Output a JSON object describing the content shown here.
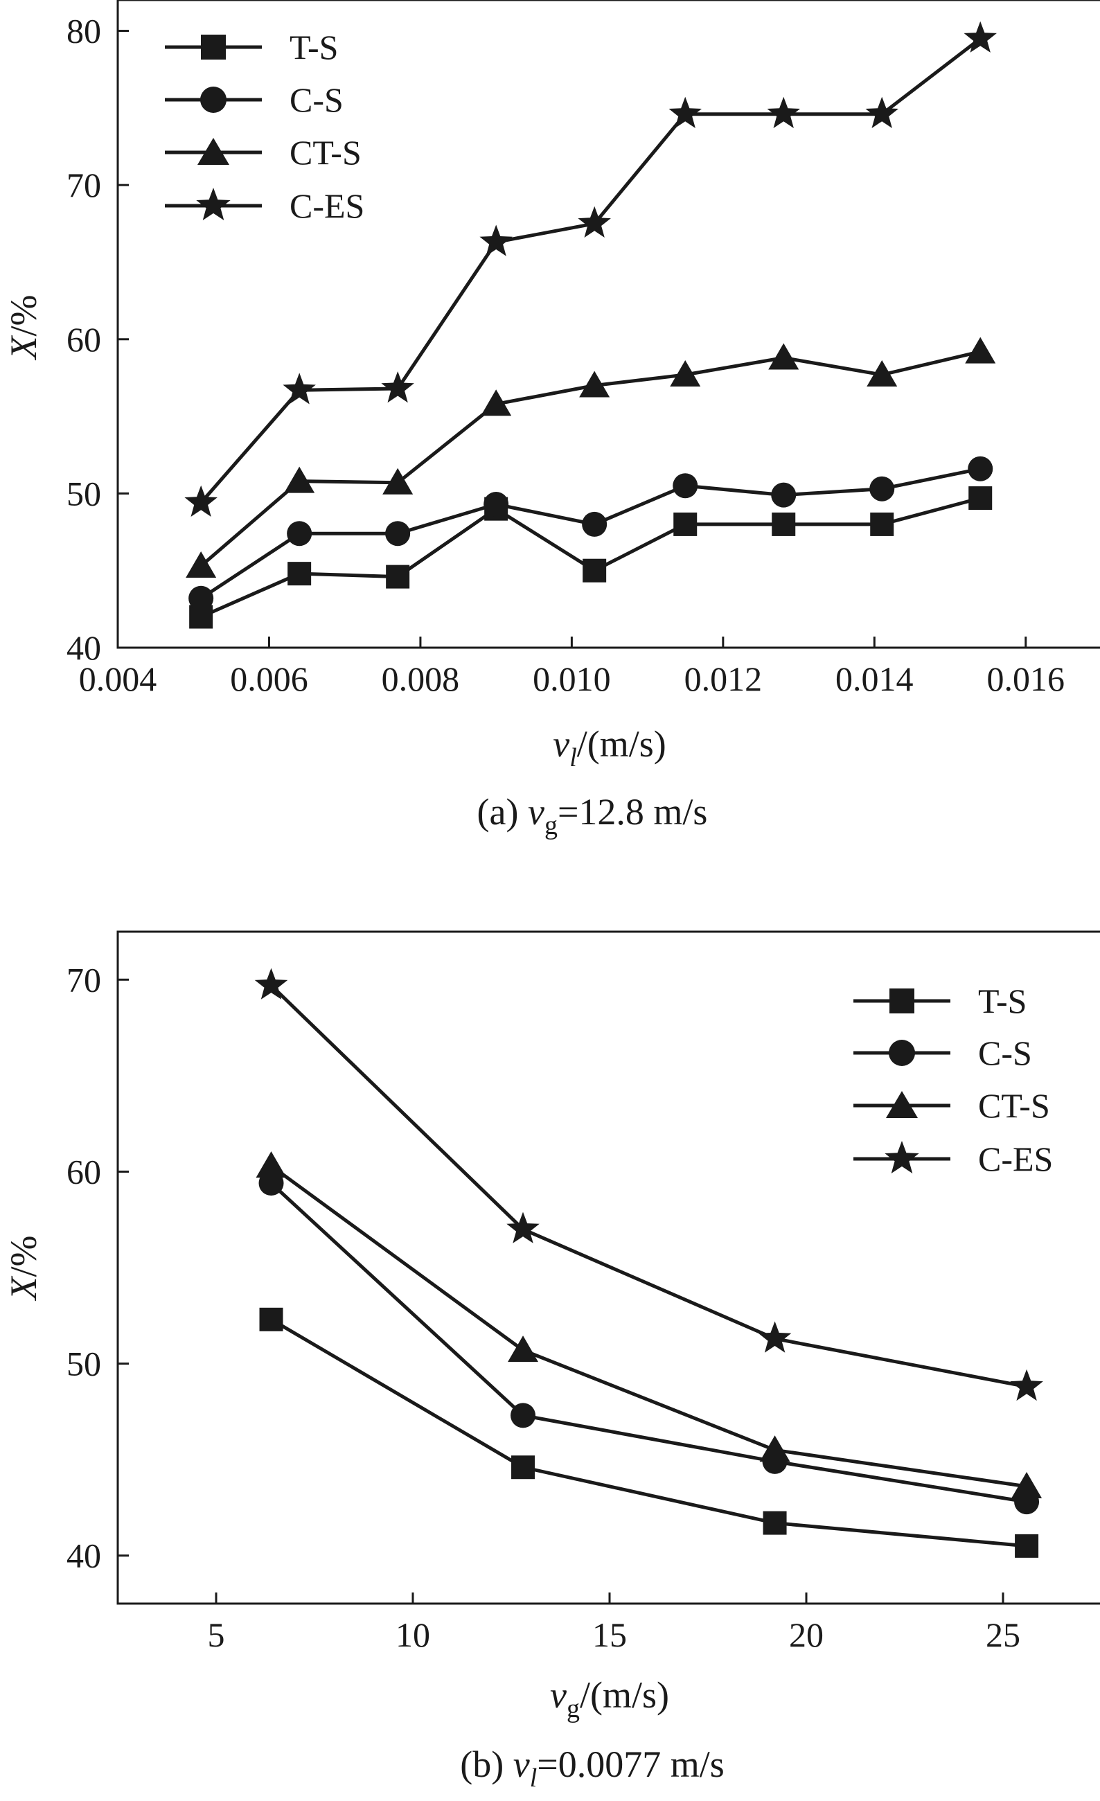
{
  "chart_data": [
    {
      "type": "line",
      "x": [
        0.0051,
        0.0064,
        0.0077,
        0.009,
        0.0103,
        0.0115,
        0.0128,
        0.0141,
        0.0154
      ],
      "series": [
        {
          "name": "T-S",
          "marker": "square",
          "values": [
            42.0,
            44.8,
            44.6,
            49.0,
            45.0,
            48.0,
            48.0,
            48.0,
            49.7
          ]
        },
        {
          "name": "C-S",
          "marker": "circle",
          "values": [
            43.2,
            47.4,
            47.4,
            49.3,
            48.0,
            50.5,
            49.9,
            50.3,
            51.6
          ]
        },
        {
          "name": "CT-S",
          "marker": "triangle",
          "values": [
            45.3,
            50.8,
            50.7,
            55.8,
            57.0,
            57.7,
            58.8,
            57.7,
            59.2
          ]
        },
        {
          "name": "C-ES",
          "marker": "star",
          "values": [
            49.4,
            56.7,
            56.8,
            66.3,
            67.5,
            74.6,
            74.6,
            74.6,
            79.5
          ]
        }
      ],
      "xlim": [
        0.004,
        0.017
      ],
      "ylim": [
        40,
        82
      ],
      "xticks": [
        "0.004",
        "0.006",
        "0.008",
        "0.010",
        "0.012",
        "0.014",
        "0.016"
      ],
      "yticks": [
        "40",
        "50",
        "60",
        "70",
        "80"
      ],
      "xlabel": {
        "var": "v",
        "sub": "l",
        "unit": "/(m/s)"
      },
      "ylabel": {
        "var": "X",
        "unit": "/%"
      },
      "caption": {
        "prefix": "(a) ",
        "var": "v",
        "sub": "g",
        "rest": "=12.8 m/s"
      },
      "legend_position": "top-left"
    },
    {
      "type": "line",
      "x": [
        6.4,
        12.8,
        19.2,
        25.6
      ],
      "series": [
        {
          "name": "T-S",
          "marker": "square",
          "values": [
            52.3,
            44.6,
            41.7,
            40.5
          ]
        },
        {
          "name": "C-S",
          "marker": "circle",
          "values": [
            59.4,
            47.3,
            44.9,
            42.8
          ]
        },
        {
          "name": "CT-S",
          "marker": "triangle",
          "values": [
            60.3,
            50.7,
            45.5,
            43.6
          ]
        },
        {
          "name": "C-ES",
          "marker": "star",
          "values": [
            69.7,
            57.0,
            51.3,
            48.8
          ]
        }
      ],
      "xlim": [
        2.5,
        27.5
      ],
      "ylim": [
        37.5,
        72.5
      ],
      "xticks": [
        "5",
        "10",
        "15",
        "20",
        "25"
      ],
      "yticks": [
        "40",
        "50",
        "60",
        "70"
      ],
      "xlabel": {
        "var": "v",
        "sub": "g",
        "unit": "/(m/s)"
      },
      "ylabel": {
        "var": "X",
        "unit": "/%"
      },
      "caption": {
        "prefix": "(b) ",
        "var": "v",
        "sub": "l",
        "rest": "=0.0077 m/s"
      },
      "legend_position": "top-right"
    }
  ]
}
